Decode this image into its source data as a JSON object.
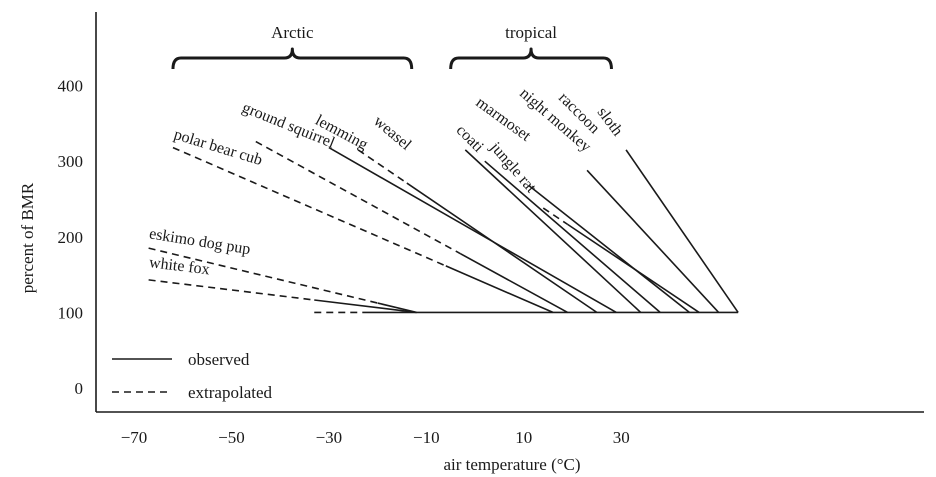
{
  "chart_data": {
    "type": "line",
    "title": "",
    "xlabel": "air temperature (°C)",
    "ylabel": "percent of BMR",
    "xlim": [
      -73,
      57
    ],
    "ylim": [
      -20,
      480
    ],
    "x_ticks": [
      "−70",
      "−50",
      "−30",
      "−10",
      "10",
      "30"
    ],
    "x_tick_values": [
      -70,
      -50,
      -30,
      -10,
      10,
      30
    ],
    "y_ticks": [
      "0",
      "100",
      "200",
      "300",
      "400"
    ],
    "y_tick_values": [
      0,
      100,
      200,
      300,
      400
    ],
    "grid": false,
    "legend_position": "bottom-left",
    "legend": [
      {
        "label": "observed",
        "style": "solid"
      },
      {
        "label": "extrapolated",
        "style": "dashed"
      }
    ],
    "groups": [
      {
        "label": "Arctic",
        "x_start": -62,
        "x_end": -13
      },
      {
        "label": "tropical",
        "x_start": -5,
        "x_end": 28
      }
    ],
    "baseline": {
      "y": 100,
      "x_start": -23,
      "x_end": 54
    },
    "series": [
      {
        "name": "white fox",
        "x_start": -67,
        "y_start": 143,
        "x_break": -33,
        "x_end": -12,
        "dashed_part": [
          -67,
          -33
        ]
      },
      {
        "name": "eskimo dog pup",
        "x_start": -67,
        "y_start": 185,
        "x_break": -20,
        "x_end": -12,
        "dashed_part": [
          -67,
          -20
        ]
      },
      {
        "name": "polar bear cub",
        "x_start": -62,
        "y_start": 318,
        "x_break": -6,
        "x_end": 16,
        "dashed_part": [
          -62,
          -6
        ]
      },
      {
        "name": "ground squirrel",
        "x_start": -45,
        "y_start": 326,
        "x_break": -3,
        "x_end": 19,
        "dashed_part": [
          -45,
          -3
        ]
      },
      {
        "name": "lemming",
        "x_start": -24,
        "y_start": 315,
        "x_break": -14,
        "x_end": 25,
        "dashed_part": [
          -24,
          -14
        ]
      },
      {
        "name": "weasel",
        "x_start": -30,
        "y_start": 318,
        "x_break": -30,
        "x_end": 29
      },
      {
        "name": "coati",
        "x_start": -2,
        "y_start": 315,
        "x_break": -2,
        "x_end": 34
      },
      {
        "name": "jungle rat",
        "x_start": 2,
        "y_start": 300,
        "x_break": 2,
        "x_end": 38
      },
      {
        "name": "marmoset",
        "x_start": 11,
        "y_start": 268,
        "x_break": 11,
        "x_end": 44
      },
      {
        "name": "night monkey",
        "x_start": 14,
        "y_start": 238,
        "x_break": 19,
        "x_end": 46
      },
      {
        "name": "raccoon",
        "x_start": 23,
        "y_start": 288,
        "x_break": 23,
        "x_end": 50
      },
      {
        "name": "sloth",
        "x_start": 31,
        "y_start": 315,
        "x_break": 31,
        "x_end": 54
      }
    ]
  }
}
